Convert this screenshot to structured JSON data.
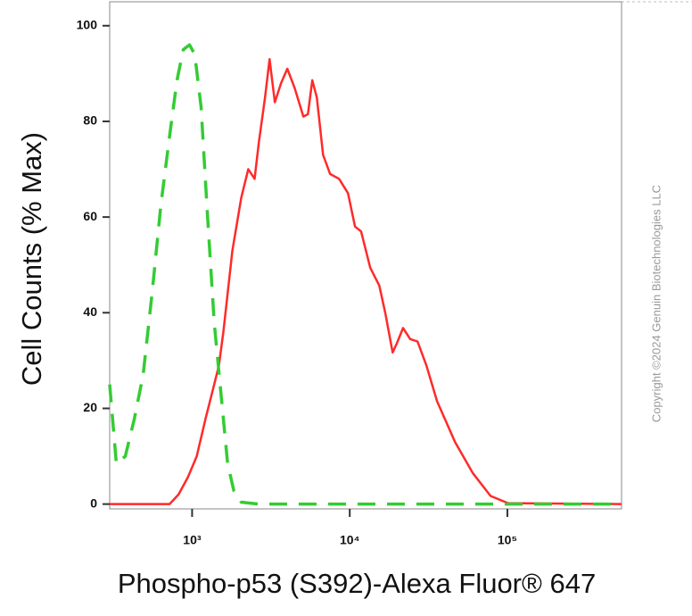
{
  "chart_data": {
    "type": "line",
    "x_label": "Phospho-p53 (S392)-Alexa Fluor® 647",
    "y_label": "Cell Counts (% Max)",
    "annotation": "Copyright ©2024 Genuin Biotechnologies LLC",
    "xscale": "log",
    "xlim": [
      300,
      530000
    ],
    "ylim": [
      -1,
      105
    ],
    "xticks": [
      {
        "value": 1000,
        "label": "10³"
      },
      {
        "value": 10000,
        "label": "10⁴"
      },
      {
        "value": 100000,
        "label": "10⁵"
      }
    ],
    "yticks": [
      0,
      20,
      40,
      60,
      80,
      100
    ],
    "series": [
      {
        "color": "#ff2a2a",
        "dash": false,
        "x": [
          300,
          720,
          820,
          940,
          1070,
          1220,
          1380,
          1480,
          1580,
          1800,
          2050,
          2270,
          2490,
          2650,
          2900,
          3100,
          3350,
          3670,
          4020,
          4470,
          5080,
          5430,
          5790,
          6180,
          6770,
          7510,
          8550,
          9740,
          10800,
          11800,
          13500,
          15400,
          16800,
          18700,
          19900,
          21800,
          24200,
          26900,
          30600,
          35800,
          46500,
          60300,
          78200,
          101000,
          528000
        ],
        "values": [
          0,
          0,
          2,
          5.6,
          10,
          18,
          25,
          29,
          36,
          53,
          64,
          70,
          68,
          75.5,
          85,
          93,
          84,
          88,
          91,
          87,
          81,
          81.5,
          88.6,
          85,
          73,
          69,
          68,
          65,
          58,
          57,
          49.4,
          45.7,
          40,
          31.7,
          33.6,
          36.8,
          34.5,
          34,
          29,
          21.5,
          13,
          6.5,
          1.7,
          0.2,
          0
        ]
      },
      {
        "color": "#33cc33",
        "dash": true,
        "x": [
          300,
          331,
          377,
          429,
          489,
          557,
          634,
          723,
          802,
          879,
          962,
          1040,
          1140,
          1250,
          1380,
          1540,
          1680,
          1840,
          2050,
          2650,
          528000
        ],
        "values": [
          25,
          8.4,
          10,
          17.7,
          27,
          44,
          62.5,
          77.4,
          88.6,
          95,
          96,
          94,
          83,
          60.6,
          38,
          21.5,
          8.4,
          2.8,
          0.4,
          0,
          0
        ]
      }
    ]
  }
}
